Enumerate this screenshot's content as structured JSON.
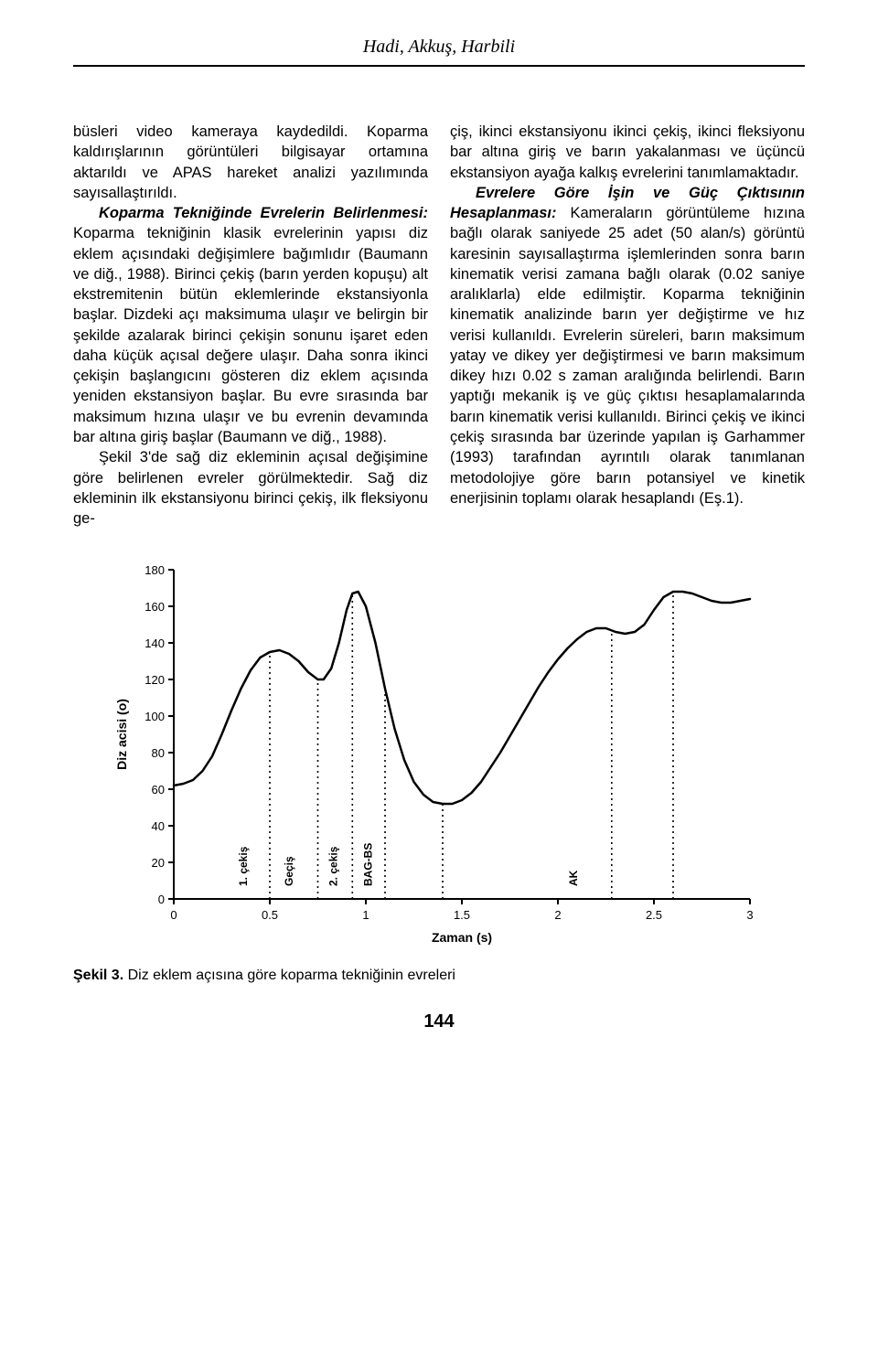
{
  "header": {
    "authors": "Hadi, Akkuş, Harbili"
  },
  "body": {
    "left_p1": "büsleri video kameraya kaydedildi. Koparma kaldırışlarının görüntüleri bilgisayar ortamına aktarıldı ve APAS hareket analizi yazılımında sayısallaştırıldı.",
    "left_run_bold1": "Koparma Tekniğinde Evrelerin Belirlenmesi:",
    "left_p2_rest": " Koparma tekniğinin klasik evrelerinin yapısı diz eklem açısındaki değişimlere bağımlıdır (Baumann ve diğ., 1988). Birinci çekiş (barın yerden kopuşu) alt ekstremitenin bütün eklemlerinde ekstansiyonla başlar. Dizdeki açı maksimuma ulaşır ve belirgin bir şekilde azalarak birinci çekişin sonunu işaret eden daha küçük açısal değere ulaşır. Daha sonra ikinci çekişin başlangıcını gösteren diz eklem açısında yeniden ekstansiyon başlar. Bu evre sırasında bar maksimum hızına ulaşır ve bu evrenin devamında bar altına giriş başlar (Baumann ve diğ., 1988).",
    "left_p3": "Şekil 3'de sağ diz ekleminin açısal değişimine göre belirlenen evreler görülmektedir. Sağ diz ekleminin ilk ekstansiyonu birinci çekiş, ilk fleksiyonu ge-",
    "right_p1": "çiş, ikinci ekstansiyonu ikinci çekiş, ikinci fleksiyonu bar altına giriş ve barın yakalanması ve üçüncü ekstansiyon ayağa kalkış evrelerini tanımlamaktadır.",
    "right_run_bold1": "Evrelere Göre İşin ve Güç Çıktısının Hesaplanması:",
    "right_p2_rest": " Kameraların görüntüleme hızına bağlı olarak saniyede 25 adet (50 alan/s) görüntü karesinin sayısallaştırma işlemlerinden sonra barın kinematik verisi zamana bağlı olarak (0.02 saniye aralıklarla) elde edilmiştir. Koparma tekniğinin kinematik analizinde barın yer değiştirme ve hız verisi kullanıldı. Evrelerin süreleri, barın maksimum yatay ve dikey yer değiştirmesi ve barın maksimum dikey hızı 0.02 s zaman aralığında belirlendi. Barın yaptığı mekanik iş ve güç çıktısı hesaplamalarında barın kinematik verisi kullanıldı. Birinci çekiş ve ikinci çekiş sırasında bar üzerinde yapılan iş Garhammer (1993) tarafından ayrıntılı olarak tanımlanan metodolojiye göre barın potansiyel ve kinetik enerjisinin toplamı olarak hesaplandı (Eş.1)."
  },
  "chart": {
    "type": "line",
    "x_label": "Zaman (s)",
    "y_label": "Diz acisi (o)",
    "xlim": [
      0,
      3
    ],
    "ylim": [
      0,
      180
    ],
    "xticks": [
      0,
      0.5,
      1,
      1.5,
      2,
      2.5,
      3
    ],
    "yticks": [
      0,
      20,
      40,
      60,
      80,
      100,
      120,
      140,
      160,
      180
    ],
    "line_color": "#000000",
    "line_width": 2.5,
    "axis_color": "#000000",
    "tick_fontsize": 13,
    "label_fontsize": 14,
    "vlabel_fontsize": 12,
    "background_color": "#ffffff",
    "axis_width": 2,
    "tick_len": 6,
    "curve": [
      [
        0.0,
        62
      ],
      [
        0.05,
        63
      ],
      [
        0.1,
        65
      ],
      [
        0.15,
        70
      ],
      [
        0.2,
        78
      ],
      [
        0.25,
        90
      ],
      [
        0.3,
        103
      ],
      [
        0.35,
        115
      ],
      [
        0.4,
        125
      ],
      [
        0.45,
        132
      ],
      [
        0.5,
        135
      ],
      [
        0.55,
        136
      ],
      [
        0.6,
        134
      ],
      [
        0.65,
        130
      ],
      [
        0.7,
        124
      ],
      [
        0.75,
        120
      ],
      [
        0.78,
        120
      ],
      [
        0.82,
        126
      ],
      [
        0.86,
        140
      ],
      [
        0.9,
        158
      ],
      [
        0.93,
        167
      ],
      [
        0.96,
        168
      ],
      [
        1.0,
        160
      ],
      [
        1.05,
        140
      ],
      [
        1.1,
        115
      ],
      [
        1.15,
        93
      ],
      [
        1.2,
        76
      ],
      [
        1.25,
        64
      ],
      [
        1.3,
        57
      ],
      [
        1.35,
        53
      ],
      [
        1.4,
        52
      ],
      [
        1.45,
        52
      ],
      [
        1.5,
        54
      ],
      [
        1.55,
        58
      ],
      [
        1.6,
        64
      ],
      [
        1.65,
        72
      ],
      [
        1.7,
        80
      ],
      [
        1.75,
        89
      ],
      [
        1.8,
        98
      ],
      [
        1.85,
        107
      ],
      [
        1.9,
        116
      ],
      [
        1.95,
        124
      ],
      [
        2.0,
        131
      ],
      [
        2.05,
        137
      ],
      [
        2.1,
        142
      ],
      [
        2.15,
        146
      ],
      [
        2.2,
        148
      ],
      [
        2.25,
        148
      ],
      [
        2.3,
        146
      ],
      [
        2.35,
        145
      ],
      [
        2.4,
        146
      ],
      [
        2.45,
        150
      ],
      [
        2.5,
        158
      ],
      [
        2.55,
        165
      ],
      [
        2.6,
        168
      ],
      [
        2.65,
        168
      ],
      [
        2.7,
        167
      ],
      [
        2.75,
        165
      ],
      [
        2.8,
        163
      ],
      [
        2.85,
        162
      ],
      [
        2.9,
        162
      ],
      [
        2.95,
        163
      ],
      [
        3.0,
        164
      ]
    ],
    "vlines": [
      {
        "x": 0.5,
        "y_top": 135,
        "label": "1. çekiş"
      },
      {
        "x": 0.75,
        "y_top": 120,
        "label": "Geçiş"
      },
      {
        "x": 0.93,
        "y_top": 167,
        "label": "2. çekiş"
      },
      {
        "x": 1.1,
        "y_top": 115,
        "label": "BAG-BS"
      },
      {
        "x": 1.4,
        "y_top": 52,
        "label": ""
      },
      {
        "x": 2.28,
        "y_top": 147,
        "label": "AK"
      },
      {
        "x": 2.6,
        "y_top": 168,
        "label": ""
      }
    ],
    "vlabel_positions": [
      {
        "label": "1. çekiş",
        "x": 0.38
      },
      {
        "label": "Geçiş",
        "x": 0.62
      },
      {
        "label": "2. çekiş",
        "x": 0.85
      },
      {
        "label": "BAG-BS",
        "x": 1.03
      },
      {
        "label": "AK",
        "x": 2.1
      }
    ]
  },
  "caption": {
    "label": "Şekil 3.",
    "text": " Diz eklem açısına göre koparma tekniğinin evreleri"
  },
  "page_number": "144"
}
